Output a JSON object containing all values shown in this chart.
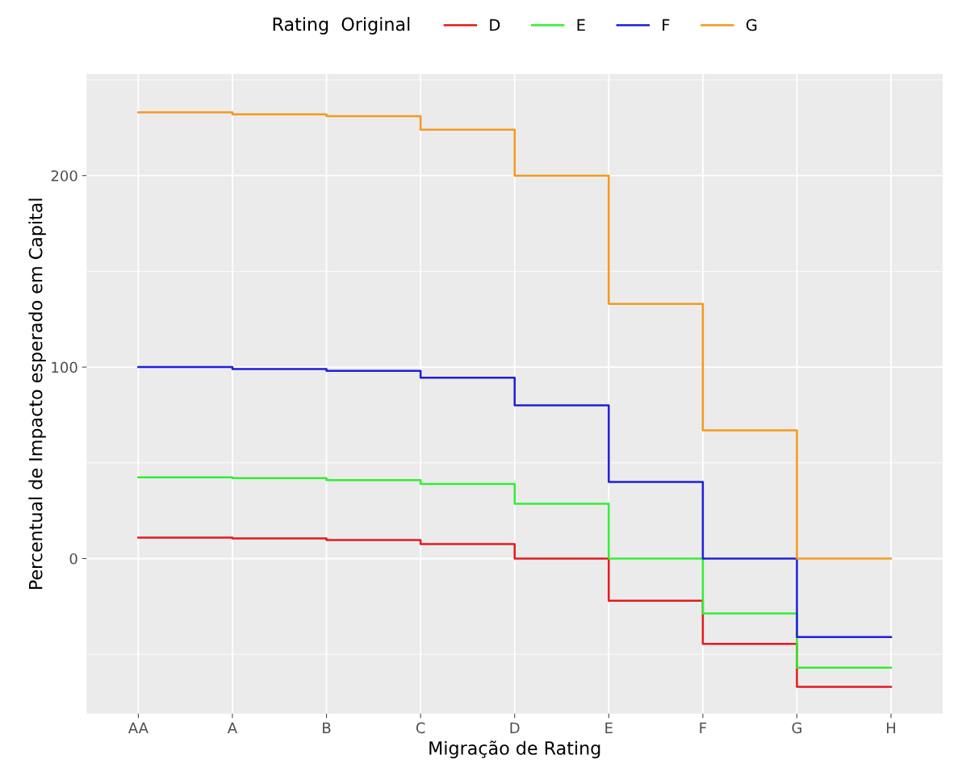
{
  "chart_data": {
    "type": "step",
    "xlabel": "Migração de Rating",
    "ylabel": "Percentual de Impacto esperado em Capital",
    "legend_title": "Rating  Original",
    "categories": [
      "AA",
      "A",
      "B",
      "C",
      "D",
      "E",
      "F",
      "G",
      "H"
    ],
    "series": [
      {
        "name": "D",
        "color": "#e41a1c",
        "values": [
          11,
          10.5,
          9.7,
          7.6,
          0,
          -22,
          -44.5,
          -67,
          -67
        ]
      },
      {
        "name": "E",
        "color": "#33ee33",
        "values": [
          42.4,
          42,
          41,
          39,
          28.6,
          0,
          -28.6,
          -57,
          -57
        ]
      },
      {
        "name": "F",
        "color": "#1f1fd8",
        "values": [
          100,
          99,
          98,
          94.5,
          80,
          40,
          0,
          -41,
          -41
        ]
      },
      {
        "name": "G",
        "color": "#f39a1e",
        "values": [
          233,
          232,
          231,
          224,
          200,
          133,
          67,
          0,
          0
        ]
      }
    ],
    "ylim": [
      -81,
      253
    ],
    "yticks": [
      {
        "value": -50,
        "label": null
      },
      0,
      {
        "value": 50,
        "label": null
      },
      100,
      {
        "value": 150,
        "label": null
      },
      200,
      {
        "value": 250,
        "label": null
      }
    ],
    "grid": true,
    "legend": "top",
    "line_style": "solid",
    "marker": "none"
  }
}
